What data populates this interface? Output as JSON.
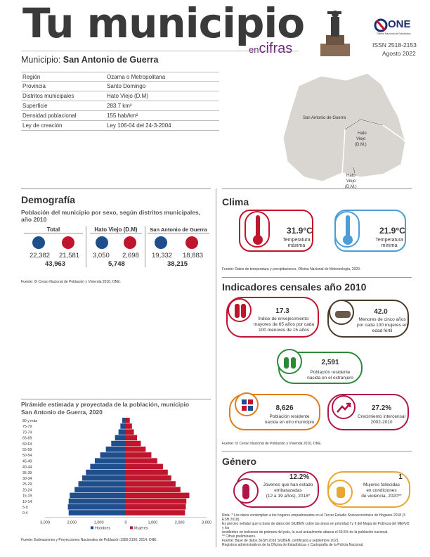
{
  "header": {
    "title": "Tu municipio",
    "tag_en": "en",
    "tag_cifras": "cifras",
    "subtitle_label": "Municipio:",
    "subtitle_value": "San Antonio de Guerra",
    "logo_text": "ONE",
    "logo_sub": "Oficina Nacional de Estadística",
    "issn": "ISSN  2518-2153",
    "date": "Agosto 2022"
  },
  "info": [
    {
      "k": "Región",
      "v": "Ozama o Metropolitana"
    },
    {
      "k": "Provincia",
      "v": "Santo Domingo"
    },
    {
      "k": "Distritos municipales",
      "v": "Hato Viejo (D.M)"
    },
    {
      "k": "Superficie",
      "v": "283.7 km²"
    },
    {
      "k": "Densidad poblacional",
      "v": "155 hab/km²"
    },
    {
      "k": "Ley de creación",
      "v": "Ley 106-04 del 24-3-2004"
    }
  ],
  "map": {
    "label_main": "San Antonio de Guerra",
    "label_hv1_a": "Hato",
    "label_hv1_b": "Viejo",
    "label_hv1_c": "(D.M.)",
    "label_hv2_a": "Hato",
    "label_hv2_b": "Viejo",
    "label_hv2_c": "(D.M.)"
  },
  "demografia": {
    "title": "Demografía",
    "subtitle_l1": "Población del municipio por sexo, según distritos municipales,",
    "subtitle_l2": "año 2010",
    "groups": [
      {
        "name": "Total",
        "m": "22,382",
        "f": "21,581",
        "t": "43,963"
      },
      {
        "name": "Hato Viejo (D.M)",
        "m": "3,050",
        "f": "2,698",
        "t": "5,748"
      },
      {
        "name": "San Antonio de Guerra",
        "m": "19,332",
        "f": "18,883",
        "t": "38,215"
      }
    ],
    "source": "Fuente: IX Censo Nacional de Población y Vivienda 2010, ONE."
  },
  "clima": {
    "title": "Clima",
    "max_val": "31.9",
    "max_unit": "°C",
    "max_l1": "Temperatura",
    "max_l2": "máxima",
    "min_val": "21.9",
    "min_unit": "°C",
    "min_l1": "Temperatura",
    "min_l2": "mínima",
    "source": "Fuente: Datos de temperatura y precipitaciones, Oficina Nacional de Meteorología, 2020."
  },
  "indicadores": {
    "title": "Indicadores censales año 2010",
    "envej_val": "17.3",
    "envej_l1": "Índice de envejecimiento:",
    "envej_l2": "mayores de 65 años por cada",
    "envej_l3": "100 menores de 15 años",
    "menores_val": "42.0",
    "menores_l1": "Menores de cinco años",
    "menores_l2": "por cada 100 mujeres en",
    "menores_l3": "edad fértil",
    "extranjero_val": "2,591",
    "extranjero_l1": "Población residente",
    "extranjero_l2": "nacida en el extranjero",
    "otro_val": "8,626",
    "otro_l1": "Población residente",
    "otro_l2": "nacida en otro municipio",
    "crec_val": "27.2%",
    "crec_l1": "Crecimiento intercensal",
    "crec_l2": "2002-2010",
    "source": "Fuente: IX Censo Nacional de Población y Vivienda 2010, ONE."
  },
  "genero": {
    "title": "Género",
    "emb_val": "12.2%",
    "emb_l1": "Jóvenes que han estado",
    "emb_l2": "embarazadas",
    "emb_l3": "(12 a 19 años), 2018*",
    "muj_val": "1",
    "muj_l1": "Mujeres fallecidas",
    "muj_l2": "en condiciones",
    "muj_l3": "de violencia, 2020**",
    "note1": "Nota: * Los datos contemplan a los hogares empadronados en el Tercer Estudio Socioeconómico de Hogares 2018 (3 ESH 2018).",
    "note2": "Es preciso señalar que la base de datos del SIUBEN cubre las áreas en prioridad I y II del Mapa de Pobreza del MEPyD y los",
    "note3": "residentes en bolsones de pobreza del país, la cual actualmente abarca el 60.5% de la población nacional.",
    "note4": "** Cifras preliminares.",
    "note5": "Fuente: Base de datos 3ESH 2018 SIUBEN, certificada a septiembre 2021.",
    "note6": "Registros administrativos de la Oficina de Estadísticas y Cartografía de la Policía Nacional."
  },
  "chart_data": {
    "type": "bar",
    "orientation": "horizontal",
    "title_l1": "Pirámide estimada y proyectada de la población, municipio",
    "title_l2": "San Antonio de Guerra, 2020",
    "categories": [
      "80 y más",
      "75-79",
      "70-74",
      "65-69",
      "60-64",
      "55-59",
      "50-54",
      "45-49",
      "40-44",
      "35-39",
      "30-34",
      "25-29",
      "20-24",
      "15-19",
      "10-14",
      "5-9",
      "0-4"
    ],
    "series": [
      {
        "name": "Hombres",
        "color": "#1f4e8c",
        "values": [
          -130,
          -200,
          -270,
          -400,
          -540,
          -740,
          -950,
          -1150,
          -1320,
          -1480,
          -1620,
          -1760,
          -1900,
          -2080,
          -2120,
          -2150,
          -2120
        ]
      },
      {
        "name": "Mujeres",
        "color": "#c0162d",
        "values": [
          150,
          230,
          300,
          420,
          560,
          740,
          950,
          1170,
          1380,
          1560,
          1690,
          1850,
          2030,
          2360,
          2250,
          2230,
          2200
        ]
      }
    ],
    "xticks": [
      "3,000",
      "2,000",
      "1,000",
      "0",
      "1,000",
      "2,000",
      "3,000"
    ],
    "xlim": [
      -3000,
      3000
    ],
    "legend": "bottom",
    "source": "Fuente: Estimaciones y Proyecciones Nacionales de Población 1950-2100, 2014. ONE."
  }
}
